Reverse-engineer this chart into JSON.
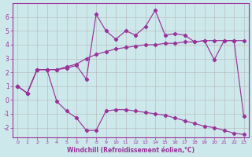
{
  "xlabel": "Windchill (Refroidissement éolien,°C)",
  "bg_color": "#cde8eb",
  "line_color": "#993399",
  "grid_color": "#b0b0b0",
  "ylim": [
    -2.7,
    7.0
  ],
  "xlim": [
    -0.5,
    23.5
  ],
  "yticks": [
    -2,
    -1,
    0,
    1,
    2,
    3,
    4,
    5,
    6
  ],
  "xticks": [
    0,
    1,
    2,
    3,
    4,
    5,
    6,
    7,
    8,
    9,
    10,
    11,
    12,
    13,
    14,
    15,
    16,
    17,
    18,
    19,
    20,
    21,
    22,
    23
  ],
  "line_upper_x": [
    0,
    1,
    2,
    3,
    4,
    5,
    6,
    7,
    8,
    9,
    10,
    11,
    12,
    13,
    14,
    15,
    16,
    17,
    18,
    19,
    20,
    21,
    22,
    23
  ],
  "line_upper_y": [
    1.0,
    0.5,
    2.2,
    2.2,
    2.2,
    2.3,
    2.5,
    1.5,
    6.2,
    5.0,
    4.4,
    5.0,
    4.7,
    5.3,
    6.5,
    4.7,
    4.8,
    4.7,
    4.2,
    4.3,
    2.9,
    4.3,
    4.3,
    -1.2
  ],
  "line_mid_x": [
    0,
    1,
    2,
    3,
    4,
    5,
    6,
    7,
    8,
    9,
    10,
    11,
    12,
    13,
    14,
    15,
    16,
    17,
    18,
    19,
    20,
    21,
    22,
    23
  ],
  "line_mid_y": [
    1.0,
    0.5,
    2.2,
    2.2,
    2.2,
    2.4,
    2.6,
    3.0,
    3.3,
    3.5,
    3.7,
    3.8,
    3.9,
    4.0,
    4.0,
    4.1,
    4.1,
    4.2,
    4.2,
    4.3,
    4.3,
    4.3,
    4.3,
    4.3
  ],
  "line_lower_x": [
    0,
    1,
    2,
    3,
    4,
    5,
    6,
    7,
    8,
    9,
    10,
    11,
    12,
    13,
    14,
    15,
    16,
    17,
    18,
    19,
    20,
    21,
    22,
    23
  ],
  "line_lower_y": [
    1.0,
    0.5,
    2.2,
    2.2,
    -0.1,
    -0.8,
    -1.3,
    -2.2,
    -2.2,
    -0.8,
    -0.7,
    -0.7,
    -0.8,
    -0.9,
    -1.0,
    -1.1,
    -1.3,
    -1.5,
    -1.7,
    -1.9,
    -2.0,
    -2.2,
    -2.4,
    -2.5
  ]
}
